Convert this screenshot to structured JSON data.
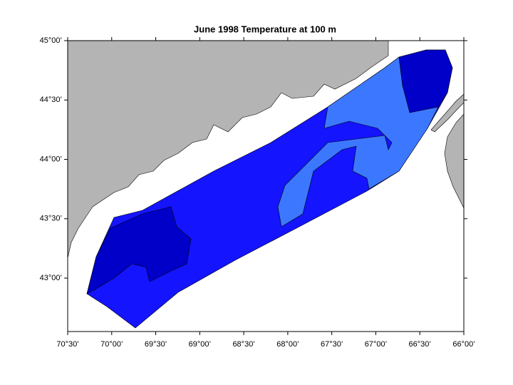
{
  "map": {
    "title": "June 1998  Temperature at 100 m",
    "xlim": [
      -70.5,
      -66.0
    ],
    "ylim": [
      42.55,
      45.0
    ],
    "xticks": [
      {
        "value": -70.5,
        "label": "70°30’"
      },
      {
        "value": -70.0,
        "label": "70°00’"
      },
      {
        "value": -69.5,
        "label": "69°30’"
      },
      {
        "value": -69.0,
        "label": "69°00’"
      },
      {
        "value": -68.5,
        "label": "68°30’"
      },
      {
        "value": -68.0,
        "label": "68°00’"
      },
      {
        "value": -67.5,
        "label": "67°30’"
      },
      {
        "value": -67.0,
        "label": "67°00’"
      },
      {
        "value": -66.5,
        "label": "66°30’"
      },
      {
        "value": -66.0,
        "label": "66°00’"
      }
    ],
    "yticks": [
      {
        "value": 43.0,
        "label": "43°00’"
      },
      {
        "value": 43.5,
        "label": "43°30’"
      },
      {
        "value": 44.0,
        "label": "44°00’"
      },
      {
        "value": 44.5,
        "label": "44°30’"
      },
      {
        "value": 45.0,
        "label": "45°00’"
      }
    ]
  }
}
